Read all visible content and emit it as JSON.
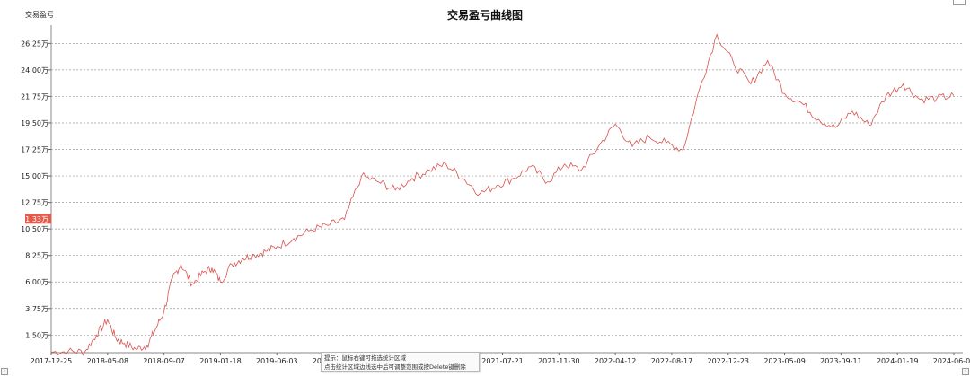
{
  "y_unit_label": "交易盈亏",
  "tooltip": {
    "line1": "提示：鼠标右键可拖选统计区域",
    "line2": "点击统计区域边线选中后可调整范围或按Delete键删除"
  },
  "scroll": {
    "left": "‹",
    "right": "›"
  },
  "chart_data": {
    "type": "line",
    "title": "交易盈亏曲线图",
    "xlabel": "",
    "ylabel": "",
    "ylim": [
      0,
      27.8
    ],
    "y_ticks": [
      1.5,
      3.75,
      6.0,
      8.25,
      10.5,
      12.75,
      15.0,
      17.25,
      19.5,
      21.75,
      24.0,
      26.25
    ],
    "y_tick_labels": [
      "1.50万",
      "3.75万",
      "6.00万",
      "8.25万",
      "10.50万",
      "12.75万",
      "15.00万",
      "17.25万",
      "19.50万",
      "21.75万",
      "24.00万",
      "26.25万"
    ],
    "x_tick_labels": [
      "2017-12-25",
      "2018-05-08",
      "2018-09-07",
      "2019-01-18",
      "2019-06-03",
      "2019-10-10",
      "",
      "2021-03-15",
      "2021-07-21",
      "2021-11-30",
      "2022-04-12",
      "2022-08-17",
      "2022-12-23",
      "2023-05-09",
      "2023-09-11",
      "2024-01-19",
      "2024-06-04"
    ],
    "current_value": 11.33,
    "current_value_label": "11.33万",
    "grid": "horizontal-dashed",
    "line_color": "#d9534f",
    "x": [
      0,
      0.3,
      0.6,
      0.8,
      1.0,
      1.15,
      1.3,
      1.5,
      1.7,
      1.85,
      2.0,
      2.15,
      2.3,
      2.5,
      2.7,
      2.85,
      3.0,
      3.2,
      3.4,
      3.6,
      3.8,
      4.0,
      4.3,
      4.6,
      4.9,
      5.2,
      5.5,
      5.8,
      6.1,
      6.4,
      6.7,
      7.0,
      7.3,
      7.6,
      7.9,
      8.2,
      8.5,
      8.8,
      9.1,
      9.4,
      9.7,
      10.0,
      10.3,
      10.6,
      10.9,
      11.2,
      11.5,
      11.8,
      12.1,
      12.4,
      12.7,
      13.0,
      13.3,
      13.6,
      13.9,
      14.2,
      14.5,
      14.8,
      15.1,
      15.4,
      15.7,
      16.0
    ],
    "values": [
      0.05,
      0.1,
      0.1,
      1.5,
      2.8,
      1.2,
      0.8,
      0.3,
      0.6,
      2.0,
      3.5,
      6.3,
      7.5,
      5.8,
      6.8,
      7.2,
      6.0,
      7.5,
      8.0,
      8.3,
      8.6,
      9.0,
      9.7,
      10.4,
      10.8,
      11.3,
      15.0,
      14.5,
      13.8,
      14.8,
      15.5,
      16.0,
      14.8,
      13.5,
      14.2,
      14.8,
      15.8,
      14.5,
      16.0,
      15.5,
      17.5,
      19.4,
      17.5,
      18.3,
      17.8,
      17.2,
      22.5,
      27.0,
      24.5,
      22.8,
      24.8,
      22.0,
      21.2,
      19.8,
      19.1,
      20.5,
      19.3,
      21.8,
      22.8,
      21.5,
      21.6,
      21.8
    ]
  }
}
